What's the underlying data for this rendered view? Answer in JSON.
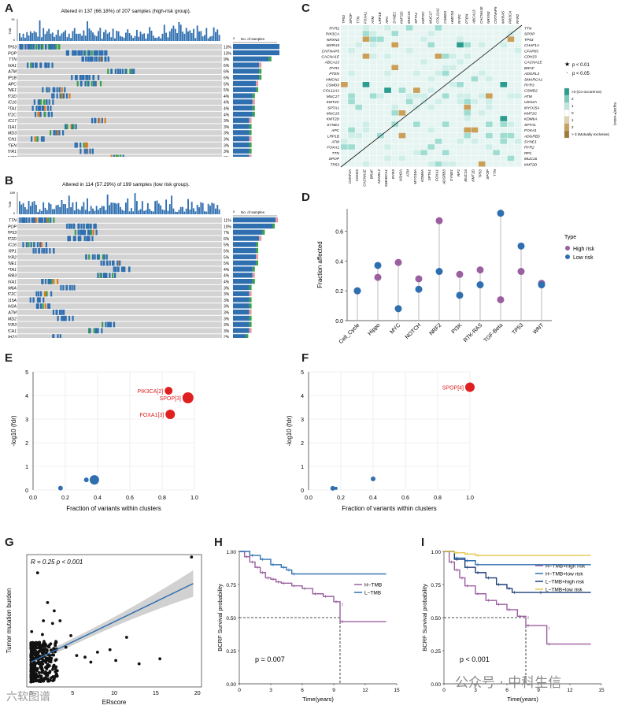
{
  "panel_labels": [
    "A",
    "B",
    "C",
    "D",
    "E",
    "F",
    "G",
    "H",
    "I"
  ],
  "colors": {
    "blue": "#2f6fb0",
    "purple": "#9b5fa0",
    "red": "#e02020",
    "teal": "#2a9d8f",
    "tan": "#c9a05a",
    "grey": "#d3d3d3",
    "orange": "#e07a20",
    "green": "#3aa04a",
    "pink": "#e79aa3"
  },
  "chart_data": [
    {
      "id": "A",
      "type": "heatmap",
      "title": "Altered in 137 (66.18%) of 207 samples (high-risk group).",
      "top_axis_label": "TMB",
      "top_ticks": [
        "0",
        "91"
      ],
      "side_title": "No. of samples",
      "side_ticks": [
        "0"
      ],
      "genes": [
        "TP53",
        "SPOP",
        "TTN",
        "FOXA1",
        "ATM",
        "LRP1B",
        "APC",
        "SYNE1",
        "KMT2D",
        "MUC16",
        "SPTA1",
        "KMT2C",
        "MUC17",
        "COL11A1",
        "CSMD3",
        "HMCN1",
        "PTEN",
        "RYR1",
        "RYR2",
        "ABCA13"
      ],
      "percents": [
        "13%",
        "13%",
        "9%",
        "6%",
        "6%",
        "6%",
        "5%",
        "5%",
        "4%",
        "4%",
        "4%",
        "4%",
        "3%",
        "3%",
        "3%",
        "3%",
        "3%",
        "3%",
        "3%",
        "3%"
      ]
    },
    {
      "id": "B",
      "type": "heatmap",
      "title": "Altered in 114 (57.29%) of 199 samples (low risk group).",
      "top_axis_label": "TMB",
      "top_ticks": [
        "0",
        "189"
      ],
      "side_title": "No. of samples",
      "side_ticks": [
        "0"
      ],
      "genes": [
        "TTN",
        "SPOP",
        "TP53",
        "KMT2D",
        "MUC16",
        "RP1",
        "RYR2",
        "SYNE1",
        "SPTA1",
        "ADGRB3",
        "FOXA1",
        "KDM6A",
        "KMT2C",
        "MYO15A",
        "USH2A",
        "ATM",
        "CSMD2",
        "RYR3",
        "SMARCA1",
        "CDH23"
      ],
      "percents": [
        "11%",
        "10%",
        "7%",
        "6%",
        "5%",
        "5%",
        "5%",
        "5%",
        "4%",
        "4%",
        "4%",
        "3%",
        "3%",
        "3%",
        "3%",
        "3%",
        "3%",
        "3%",
        "3%",
        "2%"
      ]
    },
    {
      "id": "C",
      "type": "heatmap",
      "top_genes": [
        "TP53",
        "SPOP",
        "TTN",
        "FOXA1",
        "ATM",
        "LRP1B",
        "APC",
        "SYNE1",
        "KMT2D",
        "MUC16",
        "SPTA1",
        "KMT2C",
        "MUC17",
        "COL11A1",
        "CSMD3",
        "HMCN1",
        "RYR1",
        "PTEN",
        "ABCA13",
        "CACNA1E",
        "NRXN3",
        "CNTNAP5",
        "MXRA5",
        "PIK3CA",
        "RYR2"
      ],
      "left_genes": [
        "RYR2",
        "PIK3CA",
        "NRXN3",
        "MXRA5",
        "CNTNAP5",
        "CACNA1E",
        "ABCA13",
        "RYR1",
        "PTEN",
        "HMCN1",
        "CSMD3",
        "COL11A1",
        "MUC17",
        "KMT2C",
        "SPTA1",
        "MUC16",
        "KMT2D",
        "SYNE1",
        "APC",
        "LRP1B",
        "ATM",
        "FOXA1",
        "TTN",
        "SPOP",
        "TP53"
      ],
      "right_genes": [
        "TTN",
        "SPOP",
        "TP53",
        "CHAF1A",
        "CFAP65",
        "CDH23",
        "CACNA1E",
        "BRAF",
        "ADGRL3",
        "SMARCA1",
        "RYR3",
        "CSMD2",
        "ATM",
        "USH2A",
        "MYO15A",
        "KMT2C",
        "KDM6A",
        "SPTA1",
        "FOXA1",
        "ADGRB3",
        "SYNE1",
        "RYR2",
        "RP1",
        "MUC16",
        "KMT2D"
      ],
      "bottom_genes": [
        "CHAF1A",
        "CDH23",
        "CACNA1E",
        "BRAF",
        "ADGRL3",
        "SMARCA1",
        "RYR3",
        "USH2A",
        "ATM",
        "MYO15A",
        "KDM6A",
        "SPTA1",
        "FOXA1",
        "ADGRB3",
        "SYNE1",
        "RP1",
        "MUC16",
        "KMT2D",
        "TP53",
        "SPOP",
        "TTN"
      ],
      "legend_pvalues": [
        "p < 0.01",
        "p < 0.05"
      ],
      "scale_labels": [
        ">3 (Co-occurence)",
        "2",
        "1",
        "0",
        "1",
        "2",
        "> 3 (Mutually exclusive)"
      ],
      "scale_title": "-log10(P-value)"
    },
    {
      "id": "D",
      "type": "scatter",
      "ylabel": "Fraction affected",
      "ylim": [
        0,
        0.75
      ],
      "yticks": [
        "0.0",
        "0.2",
        "0.4",
        "0.6"
      ],
      "categories": [
        "Cell_Cycle",
        "Hippo",
        "MYC",
        "NOTCH",
        "NRF2",
        "PI3K",
        "RTK-RAS",
        "TGF-Beta",
        "TP53",
        "WNT"
      ],
      "legend_title": "Type",
      "series": [
        {
          "name": "High risk",
          "values": [
            0.2,
            0.29,
            0.39,
            0.28,
            0.67,
            0.31,
            0.34,
            0.14,
            0.33,
            0.25
          ]
        },
        {
          "name": "Low risk",
          "values": [
            0.2,
            0.37,
            0.08,
            0.21,
            0.33,
            0.17,
            0.24,
            0.72,
            0.5,
            0.24
          ]
        }
      ]
    },
    {
      "id": "E",
      "type": "scatter",
      "xlabel": "Fraction of variants within clusters",
      "ylabel": "-log10 (fdr)",
      "xlim": [
        0,
        1
      ],
      "ylim": [
        0,
        5
      ],
      "xticks": [
        "0.0",
        "0.2",
        "0.4",
        "0.6",
        "0.8",
        "1.0"
      ],
      "yticks": [
        "0",
        "1",
        "2",
        "3",
        "4",
        "5"
      ],
      "points": [
        {
          "x": 0.84,
          "y": 4.2,
          "label": "PIK3CA[2]",
          "highlight": true,
          "size": 5
        },
        {
          "x": 0.96,
          "y": 3.9,
          "label": "SPOP[3]",
          "highlight": true,
          "size": 7
        },
        {
          "x": 0.85,
          "y": 3.2,
          "label": "FOXA1[3]",
          "highlight": true,
          "size": 6
        },
        {
          "x": 0.17,
          "y": 0.08,
          "label": "",
          "highlight": false,
          "size": 3
        },
        {
          "x": 0.33,
          "y": 0.43,
          "label": "",
          "highlight": false,
          "size": 3
        },
        {
          "x": 0.38,
          "y": 0.43,
          "label": "",
          "highlight": false,
          "size": 6
        }
      ]
    },
    {
      "id": "F",
      "type": "scatter",
      "xlabel": "Fraction of variants within clusters",
      "ylabel": "-log10 (fdr)",
      "xlim": [
        0,
        1
      ],
      "ylim": [
        0,
        5
      ],
      "xticks": [
        "0.0",
        "0.2",
        "0.4",
        "0.6",
        "0.8",
        "1.0"
      ],
      "yticks": [
        "0",
        "1",
        "2",
        "3",
        "4",
        "5"
      ],
      "points": [
        {
          "x": 1.0,
          "y": 4.35,
          "label": "SPOP[4]",
          "highlight": true,
          "size": 6
        },
        {
          "x": 0.15,
          "y": 0.07,
          "label": "",
          "highlight": false,
          "size": 3
        },
        {
          "x": 0.17,
          "y": 0.07,
          "label": "",
          "highlight": false,
          "size": 2
        },
        {
          "x": 0.4,
          "y": 0.47,
          "label": "",
          "highlight": false,
          "size": 3
        }
      ]
    },
    {
      "id": "G",
      "type": "scatter",
      "xlabel": "ERscore",
      "ylabel": "Tumor mutation burden",
      "xlim": [
        -0.5,
        20.5
      ],
      "ylim": [
        0,
        1.6
      ],
      "xticks": [
        "0",
        "5",
        "10",
        "15",
        "20"
      ],
      "annotation": "R = 0.25  p < 0.001",
      "fit": {
        "x": [
          0,
          19.5
        ],
        "y": [
          0.3,
          1.25
        ]
      },
      "outliers": [
        {
          "x": 19.3,
          "y": 1.57
        },
        {
          "x": 15.5,
          "y": 0.34
        },
        {
          "x": 11.5,
          "y": 0.6
        },
        {
          "x": 9.5,
          "y": 0.45
        },
        {
          "x": 8.0,
          "y": 0.42
        },
        {
          "x": 6.5,
          "y": 0.36
        },
        {
          "x": 5.5,
          "y": 0.38
        },
        {
          "x": 4.8,
          "y": 0.62
        },
        {
          "x": 3.5,
          "y": 0.8
        },
        {
          "x": 2.8,
          "y": 0.92
        },
        {
          "x": 2.0,
          "y": 1.02
        },
        {
          "x": 1.5,
          "y": 0.8
        },
        {
          "x": 0.8,
          "y": 1.38
        },
        {
          "x": 3.0,
          "y": 0.55
        },
        {
          "x": 4.2,
          "y": 0.48
        },
        {
          "x": 7.2,
          "y": 0.3
        },
        {
          "x": 10.2,
          "y": 0.32
        },
        {
          "x": 13,
          "y": 0.28
        }
      ]
    },
    {
      "id": "H",
      "type": "line",
      "xlabel": "Time(years)",
      "ylabel": "BCRF Survival probability",
      "xlim": [
        0,
        15
      ],
      "ylim": [
        0,
        1
      ],
      "xticks": [
        "0",
        "3",
        "6",
        "9",
        "12",
        "15"
      ],
      "yticks": [
        "0.00",
        "0.25",
        "0.50",
        "0.75",
        "1.00"
      ],
      "annotation": "p = 0.007",
      "median_time": 9.6,
      "series": [
        {
          "name": "H−TMB",
          "color": "#9b5fa0",
          "x": [
            0,
            0.5,
            1,
            1.5,
            2,
            2.5,
            3,
            3.5,
            4,
            5,
            6,
            7,
            8,
            9,
            9.6,
            9.6,
            14
          ],
          "y": [
            1,
            0.96,
            0.92,
            0.88,
            0.84,
            0.8,
            0.79,
            0.77,
            0.76,
            0.74,
            0.72,
            0.68,
            0.66,
            0.62,
            0.6,
            0.47,
            0.47
          ]
        },
        {
          "name": "L−TMB",
          "color": "#2f6fb0",
          "x": [
            0,
            1,
            2,
            3,
            4,
            4.5,
            5,
            14
          ],
          "y": [
            1,
            0.97,
            0.94,
            0.9,
            0.88,
            0.86,
            0.83,
            0.83
          ]
        }
      ]
    },
    {
      "id": "I",
      "type": "line",
      "xlabel": "Time(years)",
      "ylabel": "BCRF Survival probability",
      "xlim": [
        0,
        15
      ],
      "ylim": [
        0,
        1
      ],
      "xticks": [
        "0",
        "3",
        "6",
        "9",
        "12",
        "15"
      ],
      "yticks": [
        "0.00",
        "0.25",
        "0.50",
        "0.75",
        "1.00"
      ],
      "annotation": "p < 0.001",
      "median_time": 7.8,
      "series": [
        {
          "name": "H−TMB+high risk",
          "color": "#9b5fa0",
          "x": [
            0,
            0.5,
            1,
            1.5,
            2,
            3,
            4,
            5,
            6,
            7,
            7.8,
            7.8,
            9.8,
            9.8,
            14
          ],
          "y": [
            1,
            0.92,
            0.86,
            0.8,
            0.74,
            0.68,
            0.63,
            0.6,
            0.56,
            0.51,
            0.5,
            0.44,
            0.42,
            0.3,
            0.3
          ]
        },
        {
          "name": "H−TMB+low risk",
          "color": "#2f6fb0",
          "x": [
            0,
            1,
            2,
            3,
            14
          ],
          "y": [
            1,
            0.95,
            0.93,
            0.9,
            0.9
          ]
        },
        {
          "name": "L−TMB+high risk",
          "color": "#1f3f7a",
          "x": [
            0,
            1,
            2,
            3,
            4,
            5,
            6,
            6.5,
            9,
            14
          ],
          "y": [
            1,
            0.94,
            0.88,
            0.84,
            0.8,
            0.75,
            0.72,
            0.69,
            0.69,
            0.69
          ]
        },
        {
          "name": "L−TMB+low risk",
          "color": "#e6c84a",
          "x": [
            0,
            1,
            2,
            3,
            14
          ],
          "y": [
            1,
            0.99,
            0.98,
            0.97,
            0.97
          ]
        }
      ]
    }
  ],
  "watermark": {
    "left": "六软图谱",
    "right": "公众号 · 中科生信"
  }
}
